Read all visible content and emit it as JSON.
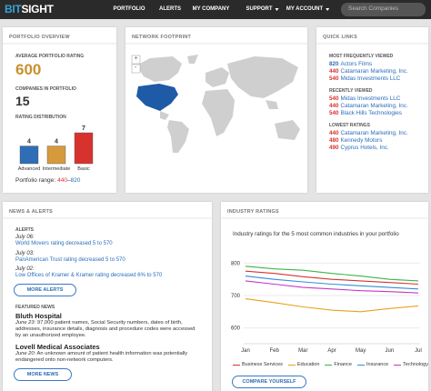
{
  "nav": {
    "logo_left": "BIT",
    "logo_right": "SIGHT",
    "items": [
      {
        "label": "PORTFOLIO",
        "dropdown": false
      },
      {
        "label": "ALERTS",
        "dropdown": false
      },
      {
        "label": "MY COMPANY",
        "dropdown": false
      },
      {
        "label": "SUPPORT",
        "dropdown": true
      },
      {
        "label": "MY ACCOUNT",
        "dropdown": true
      }
    ],
    "search_placeholder": "Search Companies"
  },
  "portfolio_overview": {
    "title": "PORTFOLIO OVERVIEW",
    "avg_label": "AVERAGE PORTFOLIO RATING",
    "avg_value": 600,
    "count_label": "COMPANIES IN PORTFOLIO",
    "count_value": 15,
    "distribution": {
      "title": "RATING DISTRIBUTION",
      "categories": [
        "Advanced",
        "Intermediate",
        "Basic"
      ],
      "values": [
        4,
        4,
        7
      ],
      "colors": [
        "#2f6db5",
        "#d69a3c",
        "#d8322f"
      ]
    },
    "range_label": "Portfolio range:",
    "range_low": 440,
    "range_separator": "–",
    "range_high": 820
  },
  "network_footprint": {
    "title": "NETWORK FOOTPRINT",
    "zoom_in": "+",
    "zoom_out": "-"
  },
  "quick_links": {
    "title": "QUICK LINKS",
    "sections": [
      {
        "title": "MOST FREQUENTLY VIEWED",
        "items": [
          {
            "rating": 820,
            "name": "Actors Films",
            "color": "#2f6db5"
          },
          {
            "rating": 440,
            "name": "Catamaran Marketing, Inc.",
            "color": "#d8322f"
          },
          {
            "rating": 540,
            "name": "Midas Investments LLC",
            "color": "#d8322f"
          }
        ]
      },
      {
        "title": "RECENTLY VIEWED",
        "items": [
          {
            "rating": 540,
            "name": "Midas Investments LLC",
            "color": "#d8322f"
          },
          {
            "rating": 440,
            "name": "Catamaran Marketing, Inc.",
            "color": "#d8322f"
          },
          {
            "rating": 540,
            "name": "Black Hills Technologies",
            "color": "#d8322f"
          }
        ]
      },
      {
        "title": "LOWEST RATINGS",
        "items": [
          {
            "rating": 440,
            "name": "Catamaran Marketing, Inc.",
            "color": "#d8322f"
          },
          {
            "rating": 480,
            "name": "Kennedy Motors",
            "color": "#d8322f"
          },
          {
            "rating": 490,
            "name": "Cyprus Hotels, Inc.",
            "color": "#d8322f"
          }
        ]
      }
    ]
  },
  "news_alerts": {
    "title": "NEWS & ALERTS",
    "alerts_title": "ALERTS",
    "alerts": [
      {
        "date": "July 06:",
        "text": "World Movers rating decreased 5 to 570"
      },
      {
        "date": "July 03:",
        "text": "PanAmerican Trust rating decreased 5 to 570"
      },
      {
        "date": "July 02:",
        "text": "Low Offices of Kramer & Kramer rating decreased 6% to 570"
      }
    ],
    "more_alerts": "MORE ALERTS",
    "news_title": "FEATURED NEWS",
    "news": [
      {
        "headline": "Bluth Hospital",
        "date": "June 23:",
        "text": "97,000 patient names, Social Security numbers, dates of birth, addresses, insurance details, diagnosis and procedure codes were accessed by an unauthorized employee."
      },
      {
        "headline": "Lovell Medical Associates",
        "date": "June 20:",
        "text": "An unknown amount of patient health information was potentially endangered onto non-network computers."
      }
    ],
    "more_news": "MORE NEWS"
  },
  "industry_ratings": {
    "title": "INDUSTRY RATINGS",
    "subtitle": "Industry ratings for the 5 most common industries in your portfolio",
    "type": "line",
    "categories": [
      "Jan",
      "Feb",
      "Mar",
      "Apr",
      "May",
      "Jun",
      "Jul"
    ],
    "ylim": [
      560,
      840
    ],
    "yticks": [
      600,
      700,
      800
    ],
    "grid": true,
    "series": [
      {
        "name": "Business Services",
        "color": "#d8322f",
        "values": [
          775,
          768,
          758,
          750,
          745,
          740,
          735
        ]
      },
      {
        "name": "Education",
        "color": "#e8a21c",
        "values": [
          690,
          678,
          665,
          655,
          650,
          660,
          668
        ]
      },
      {
        "name": "Finance",
        "color": "#3cb44b",
        "values": [
          790,
          782,
          778,
          768,
          760,
          750,
          745
        ]
      },
      {
        "name": "Insurance",
        "color": "#2f8fd8",
        "values": [
          760,
          750,
          742,
          735,
          730,
          725,
          720
        ]
      },
      {
        "name": "Technology",
        "color": "#c837c8",
        "values": [
          745,
          735,
          725,
          720,
          715,
          712,
          708
        ]
      }
    ],
    "button": "COMPARE YOURSELF"
  }
}
